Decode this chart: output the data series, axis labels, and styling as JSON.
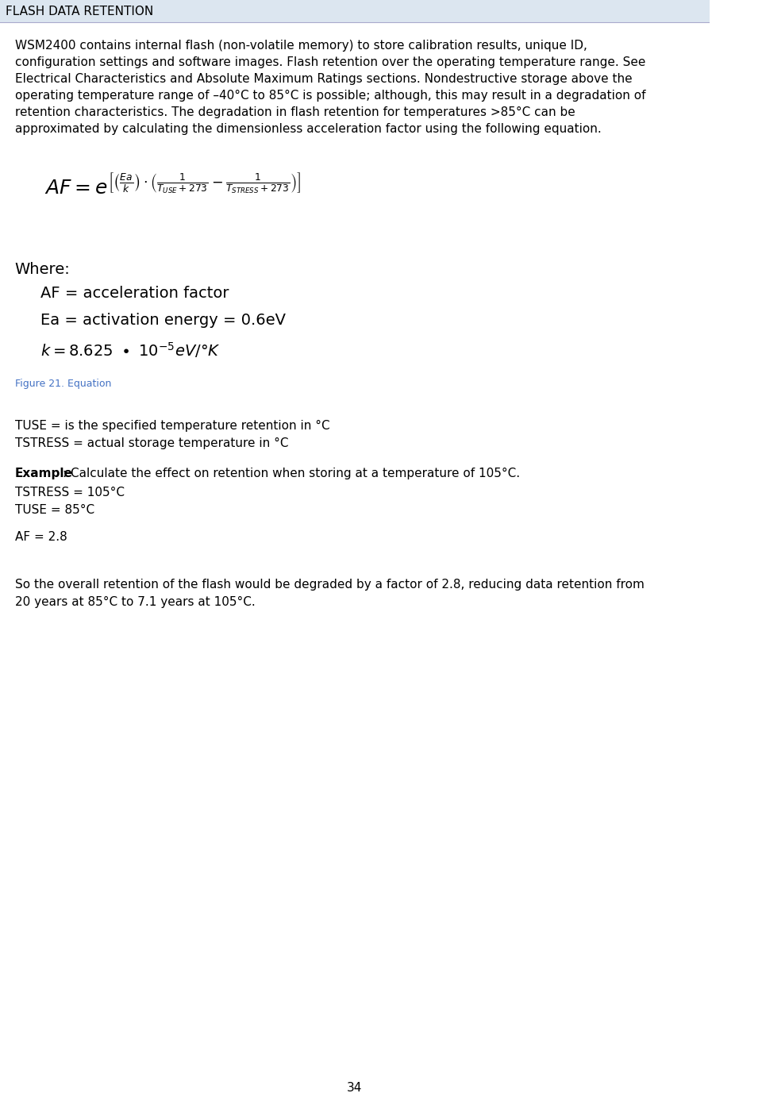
{
  "title": "FLASH DATA RETENTION",
  "title_bg": "#dce6f0",
  "title_color": "#000000",
  "title_fontsize": 11,
  "body_fontsize": 11,
  "body_color": "#000000",
  "paragraph1": "WSM2400 contains internal flash (non-volatile memory) to store calibration results, unique ID,\nconfiguration settings and software images. Flash retention over the operating temperature range. See\nElectrical Characteristics and Absolute Maximum Ratings sections. Nondestructive storage above the\noperating temperature range of –40°C to 85°C is possible; although, this may result in a degradation of\nretention characteristics. The degradation in flash retention for temperatures >85°C can be\napproximated by calculating the dimensionless acceleration factor using the following equation.",
  "figure_caption": "Figure 21. Equation",
  "figure_caption_color": "#4472c4",
  "tuse_line": "TUSE = is the specified temperature retention in °C",
  "tstress_line": "TSTRESS = actual storage temperature in °C",
  "example_bold": "Example",
  "example_rest": ": Calculate the effect on retention when storing at a temperature of 105°C.",
  "tstress_val": "TSTRESS = 105°C",
  "tuse_val": "TUSE = 85°C",
  "af_val": "AF = 2.8",
  "conclusion": "So the overall retention of the flash would be degraded by a factor of 2.8, reducing data retention from\n20 years at 85°C to 7.1 years at 105°C.",
  "page_number": "34",
  "background_color": "#ffffff"
}
